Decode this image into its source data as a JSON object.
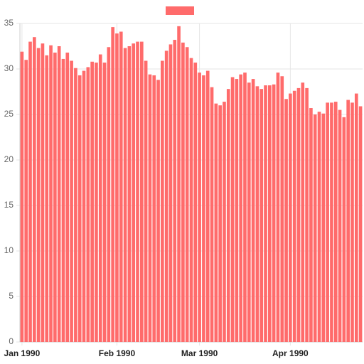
{
  "chart_data": {
    "type": "bar",
    "color": "#ff6b6b",
    "categories": [
      "Jan 1990",
      null,
      null,
      null,
      null,
      null,
      null,
      null,
      null,
      null,
      null,
      null,
      null,
      null,
      null,
      null,
      null,
      null,
      null,
      null,
      null,
      null,
      null,
      "Feb 1990",
      null,
      null,
      null,
      null,
      null,
      null,
      null,
      null,
      null,
      null,
      null,
      null,
      null,
      null,
      null,
      null,
      null,
      null,
      null,
      "Mar 1990",
      null,
      null,
      null,
      null,
      null,
      null,
      null,
      null,
      null,
      null,
      null,
      null,
      null,
      null,
      null,
      null,
      null,
      null,
      null,
      null,
      null,
      "Apr 1990",
      null,
      null,
      null,
      null,
      null,
      null,
      null,
      null,
      null,
      null,
      null,
      null,
      null,
      null,
      null,
      null,
      null
    ],
    "values": [
      31.9,
      31.0,
      33.0,
      33.5,
      32.3,
      32.8,
      31.5,
      32.6,
      31.8,
      32.5,
      31.1,
      31.8,
      30.9,
      30.1,
      29.3,
      29.8,
      30.2,
      30.8,
      30.7,
      31.6,
      30.7,
      32.4,
      34.6,
      33.9,
      34.1,
      32.3,
      32.5,
      32.8,
      33.0,
      33.0,
      30.9,
      29.4,
      29.3,
      28.8,
      30.9,
      32.0,
      32.7,
      33.2,
      34.7,
      32.9,
      32.4,
      31.2,
      30.7,
      29.6,
      29.3,
      29.8,
      28.0,
      26.2,
      26.0,
      26.4,
      27.8,
      29.1,
      28.9,
      29.4,
      29.6,
      28.5,
      28.9,
      28.1,
      27.8,
      28.2,
      28.2,
      28.3,
      29.6,
      29.2,
      26.7,
      27.3,
      27.6,
      27.9,
      28.5,
      27.9,
      25.7,
      25.0,
      25.3,
      25.1,
      26.3,
      26.3,
      26.4,
      25.5,
      24.7,
      26.6,
      26.3,
      27.3,
      25.9
    ],
    "ylim": [
      0,
      35
    ],
    "yticks": [
      0,
      5,
      10,
      15,
      20,
      25,
      30,
      35
    ],
    "grid": true
  }
}
